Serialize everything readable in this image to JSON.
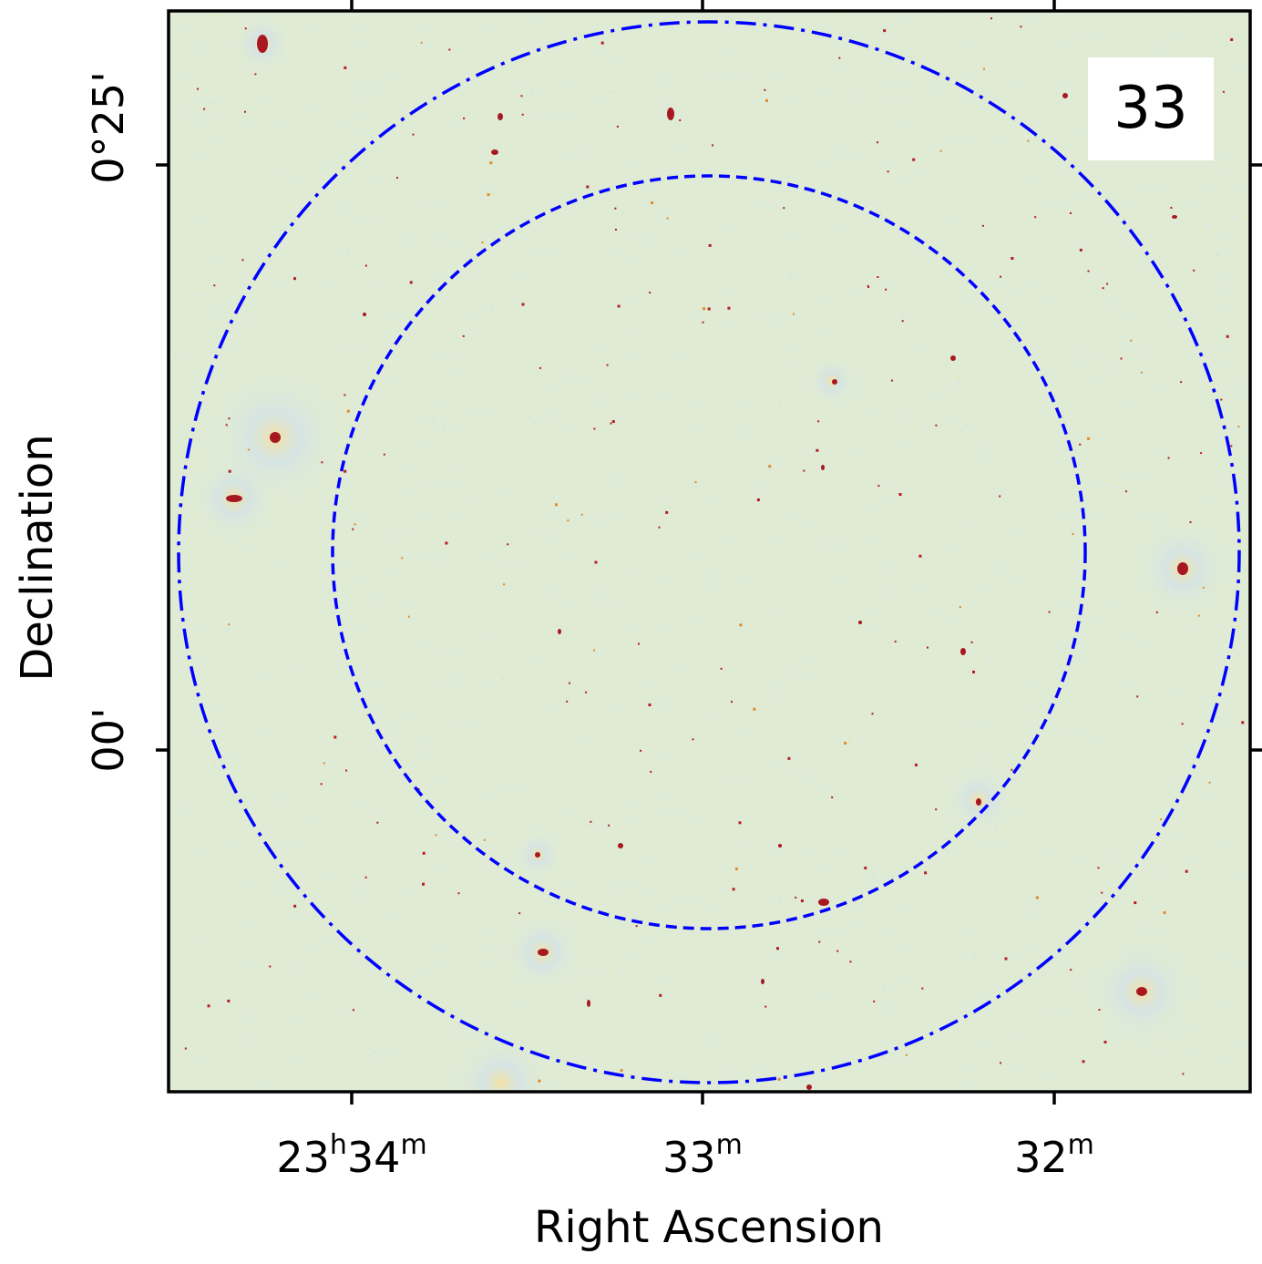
{
  "figure": {
    "panel_label": "33",
    "xlabel": "Right Ascension",
    "ylabel": "Declination",
    "x_ticks": [
      {
        "hour": "23",
        "hour_unit": "h",
        "min": "34",
        "min_unit": "m"
      },
      {
        "min": "33",
        "min_unit": "m"
      },
      {
        "min": "32",
        "min_unit": "m"
      }
    ],
    "y_ticks": [
      "0°25'",
      "00'"
    ]
  },
  "colors": {
    "background": "#dfebd5",
    "sources": "#a81820",
    "circles": "#0000ff",
    "frame": "#000000"
  },
  "circles": [
    {
      "name": "inner-circle",
      "style": "dashed"
    },
    {
      "name": "outer-circle",
      "style": "dash-dot"
    }
  ]
}
